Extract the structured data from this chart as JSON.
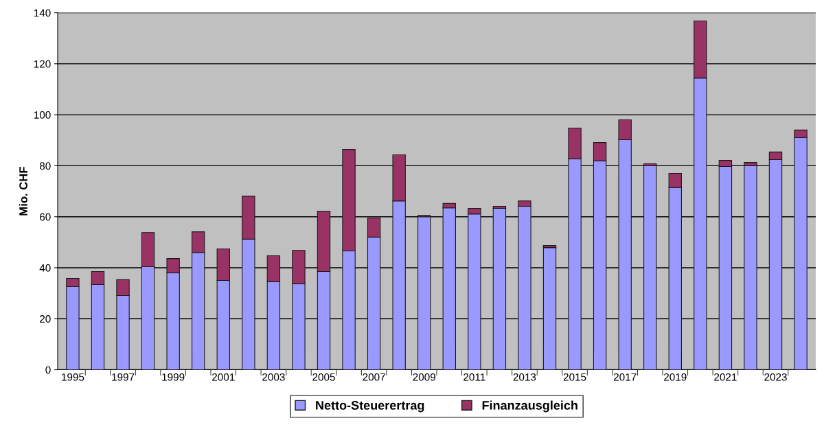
{
  "chart_data": {
    "type": "bar",
    "stacked": true,
    "ylabel": "Mio. CHF",
    "categories": [
      "1995",
      null,
      "1997",
      null,
      "1999",
      null,
      "2001",
      null,
      "2003",
      null,
      "2005",
      null,
      "2007",
      null,
      "2009",
      null,
      "2011",
      null,
      "2013",
      null,
      "2015",
      null,
      "2017",
      null,
      "2019",
      null,
      "2021",
      null,
      "2023",
      null
    ],
    "series": [
      {
        "name": "Netto-Steuerertrag",
        "color": "#9999ff",
        "values": [
          32.6,
          33.4,
          29.1,
          40.4,
          38.0,
          46.0,
          35.0,
          51.2,
          34.5,
          33.7,
          38.5,
          46.6,
          52.0,
          66.2,
          60.0,
          63.5,
          61.1,
          63.3,
          64.1,
          47.9,
          82.7,
          81.9,
          90.2,
          80.0,
          71.4,
          114.4,
          79.7,
          80.0,
          82.4,
          91.0
        ]
      },
      {
        "name": "Finanzausgleich",
        "color": "#993366",
        "values": [
          3.2,
          5.1,
          6.2,
          13.4,
          5.6,
          8.1,
          12.4,
          16.9,
          10.2,
          13.1,
          23.7,
          39.8,
          7.5,
          18.1,
          0.5,
          1.7,
          2.2,
          0.8,
          2.1,
          0.8,
          12.1,
          7.2,
          7.8,
          0.8,
          5.6,
          22.4,
          2.4,
          1.3,
          3.0,
          3.0
        ]
      }
    ],
    "ylim": [
      0,
      140
    ],
    "yticks": [
      0,
      20,
      40,
      60,
      80,
      100,
      120,
      140
    ],
    "grid": "y",
    "legend": "bottom"
  }
}
